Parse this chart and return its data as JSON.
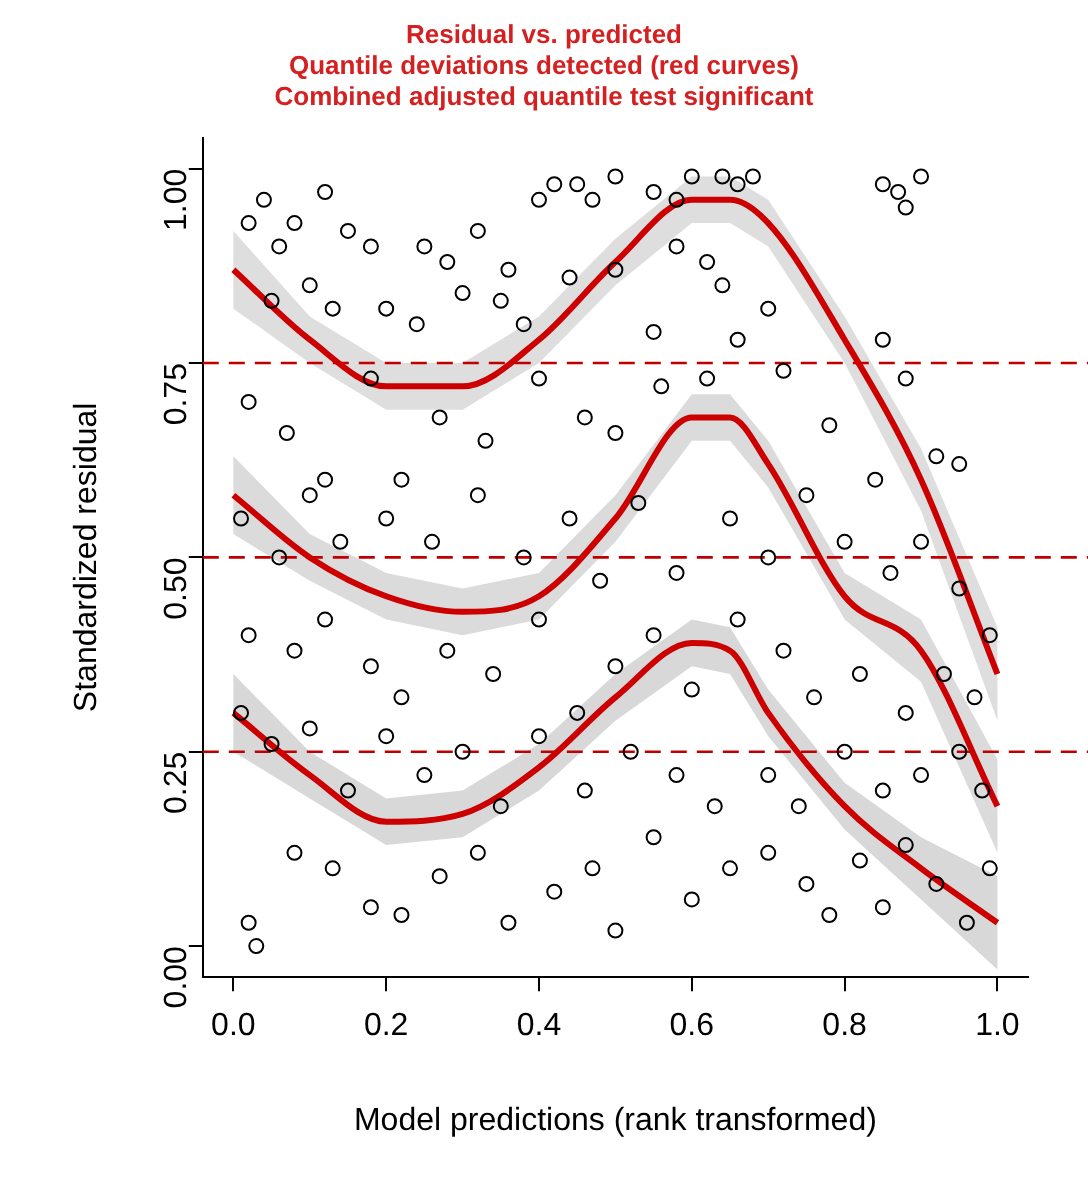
{
  "chart_data": {
    "type": "scatter",
    "title": "Residual vs. predicted",
    "subtitle": "Quantile deviations detected (red curves)\nCombined adjusted quantile test significant",
    "xlabel": "Model predictions (rank transformed)",
    "ylabel": "Standardized residual",
    "xlim": [
      -0.04,
      1.04
    ],
    "ylim": [
      -0.04,
      1.04
    ],
    "xticks": [
      {
        "value": 0,
        "label": "0.0"
      },
      {
        "value": 0.2,
        "label": "0.2"
      },
      {
        "value": 0.4,
        "label": "0.4"
      },
      {
        "value": 0.6,
        "label": "0.6"
      },
      {
        "value": 0.8,
        "label": "0.8"
      },
      {
        "value": 1,
        "label": "1.0"
      }
    ],
    "yticks": [
      {
        "value": 0,
        "label": "0.00"
      },
      {
        "value": 0.25,
        "label": "0.25"
      },
      {
        "value": 0.5,
        "label": "0.50"
      },
      {
        "value": 0.75,
        "label": "0.75"
      },
      {
        "value": 1,
        "label": "1.00"
      }
    ],
    "grid": false,
    "legend": false,
    "ref_lines": [
      {
        "axis": "y",
        "value": 0.25,
        "color": "#c00000",
        "line_style": "dashed"
      },
      {
        "axis": "y",
        "value": 0.5,
        "color": "#c00000",
        "line_style": "dashed"
      },
      {
        "axis": "y",
        "value": 0.75,
        "color": "#c00000",
        "line_style": "dashed"
      }
    ],
    "series": [
      {
        "marker": "circle",
        "color": "#000000",
        "x": [
          0.02,
          0.04,
          0.06,
          0.08,
          0.12,
          0.15,
          0.18,
          0.25,
          0.28,
          0.32,
          0.36,
          0.4,
          0.42,
          0.45,
          0.47,
          0.5,
          0.55,
          0.58,
          0.6,
          0.64,
          0.66,
          0.68,
          0.85,
          0.87,
          0.9,
          0.88,
          0.05,
          0.1,
          0.13,
          0.2,
          0.24,
          0.3,
          0.35,
          0.38,
          0.44,
          0.5,
          0.58,
          0.62,
          0.64,
          0.7,
          0.55,
          0.66,
          0.85,
          0.02,
          0.07,
          0.12,
          0.18,
          0.22,
          0.27,
          0.33,
          0.4,
          0.46,
          0.5,
          0.56,
          0.62,
          0.72,
          0.78,
          0.84,
          0.88,
          0.92,
          0.95,
          0.01,
          0.06,
          0.1,
          0.14,
          0.2,
          0.26,
          0.32,
          0.38,
          0.44,
          0.48,
          0.53,
          0.58,
          0.65,
          0.7,
          0.75,
          0.8,
          0.86,
          0.9,
          0.95,
          0.99,
          0.02,
          0.08,
          0.12,
          0.18,
          0.22,
          0.28,
          0.34,
          0.4,
          0.45,
          0.5,
          0.55,
          0.6,
          0.66,
          0.72,
          0.76,
          0.82,
          0.88,
          0.93,
          0.97,
          0.01,
          0.05,
          0.1,
          0.15,
          0.2,
          0.25,
          0.3,
          0.35,
          0.4,
          0.46,
          0.52,
          0.58,
          0.63,
          0.7,
          0.74,
          0.8,
          0.85,
          0.9,
          0.95,
          0.98,
          0.02,
          0.03,
          0.08,
          0.13,
          0.18,
          0.22,
          0.27,
          0.32,
          0.36,
          0.42,
          0.47,
          0.5,
          0.55,
          0.6,
          0.65,
          0.7,
          0.75,
          0.78,
          0.82,
          0.85,
          0.88,
          0.92,
          0.96,
          0.99
        ],
        "values": [
          0.93,
          0.96,
          0.9,
          0.93,
          0.97,
          0.92,
          0.9,
          0.9,
          0.88,
          0.92,
          0.87,
          0.96,
          0.98,
          0.98,
          0.96,
          0.99,
          0.97,
          0.96,
          0.99,
          0.99,
          0.98,
          0.99,
          0.98,
          0.97,
          0.99,
          0.95,
          0.83,
          0.85,
          0.82,
          0.82,
          0.8,
          0.84,
          0.83,
          0.8,
          0.86,
          0.87,
          0.9,
          0.88,
          0.85,
          0.82,
          0.79,
          0.78,
          0.78,
          0.7,
          0.66,
          0.6,
          0.73,
          0.6,
          0.68,
          0.65,
          0.73,
          0.68,
          0.66,
          0.72,
          0.73,
          0.74,
          0.67,
          0.6,
          0.73,
          0.63,
          0.62,
          0.55,
          0.5,
          0.58,
          0.52,
          0.55,
          0.52,
          0.58,
          0.5,
          0.55,
          0.47,
          0.57,
          0.48,
          0.55,
          0.5,
          0.58,
          0.52,
          0.48,
          0.52,
          0.46,
          0.4,
          0.4,
          0.38,
          0.42,
          0.36,
          0.32,
          0.38,
          0.35,
          0.42,
          0.3,
          0.36,
          0.4,
          0.33,
          0.42,
          0.38,
          0.32,
          0.35,
          0.3,
          0.35,
          0.32,
          0.3,
          0.26,
          0.28,
          0.2,
          0.27,
          0.22,
          0.25,
          0.18,
          0.27,
          0.2,
          0.25,
          0.22,
          0.18,
          0.22,
          0.18,
          0.25,
          0.2,
          0.22,
          0.25,
          0.2,
          0.03,
          0.0,
          0.12,
          0.1,
          0.05,
          0.04,
          0.09,
          0.12,
          0.03,
          0.07,
          0.1,
          0.02,
          0.14,
          0.06,
          0.1,
          0.12,
          0.08,
          0.04,
          0.11,
          0.05,
          0.13,
          0.08,
          0.03,
          0.1
        ]
      },
      {
        "type": "line",
        "color": "#cc0000",
        "x": [
          0,
          0.1,
          0.2,
          0.3,
          0.4,
          0.5,
          0.6,
          0.65,
          0.7,
          0.8,
          0.9,
          1
        ],
        "values": [
          0.87,
          0.78,
          0.72,
          0.72,
          0.78,
          0.88,
          0.96,
          0.96,
          0.93,
          0.78,
          0.6,
          0.35
        ],
        "lower": [
          0.82,
          0.75,
          0.69,
          0.69,
          0.75,
          0.85,
          0.93,
          0.93,
          0.9,
          0.75,
          0.56,
          0.29
        ],
        "upper": [
          0.92,
          0.81,
          0.75,
          0.75,
          0.81,
          0.91,
          0.99,
          0.99,
          0.96,
          0.81,
          0.64,
          0.41
        ]
      },
      {
        "type": "line",
        "color": "#cc0000",
        "x": [
          0,
          0.1,
          0.2,
          0.3,
          0.4,
          0.5,
          0.6,
          0.65,
          0.7,
          0.8,
          0.9,
          1
        ],
        "values": [
          0.58,
          0.5,
          0.45,
          0.43,
          0.45,
          0.55,
          0.68,
          0.68,
          0.62,
          0.45,
          0.38,
          0.18
        ],
        "lower": [
          0.53,
          0.47,
          0.42,
          0.4,
          0.42,
          0.52,
          0.65,
          0.65,
          0.59,
          0.42,
          0.34,
          0.12
        ],
        "upper": [
          0.63,
          0.53,
          0.48,
          0.46,
          0.48,
          0.58,
          0.71,
          0.71,
          0.65,
          0.48,
          0.42,
          0.24
        ]
      },
      {
        "type": "line",
        "color": "#cc0000",
        "x": [
          0,
          0.1,
          0.2,
          0.3,
          0.4,
          0.5,
          0.6,
          0.65,
          0.7,
          0.8,
          0.9,
          1
        ],
        "values": [
          0.3,
          0.22,
          0.16,
          0.17,
          0.23,
          0.32,
          0.39,
          0.38,
          0.3,
          0.18,
          0.1,
          0.03
        ],
        "lower": [
          0.25,
          0.19,
          0.13,
          0.14,
          0.2,
          0.29,
          0.36,
          0.35,
          0.27,
          0.15,
          0.06,
          -0.03
        ],
        "upper": [
          0.35,
          0.25,
          0.19,
          0.2,
          0.26,
          0.35,
          0.42,
          0.41,
          0.33,
          0.21,
          0.14,
          0.09
        ]
      }
    ]
  }
}
